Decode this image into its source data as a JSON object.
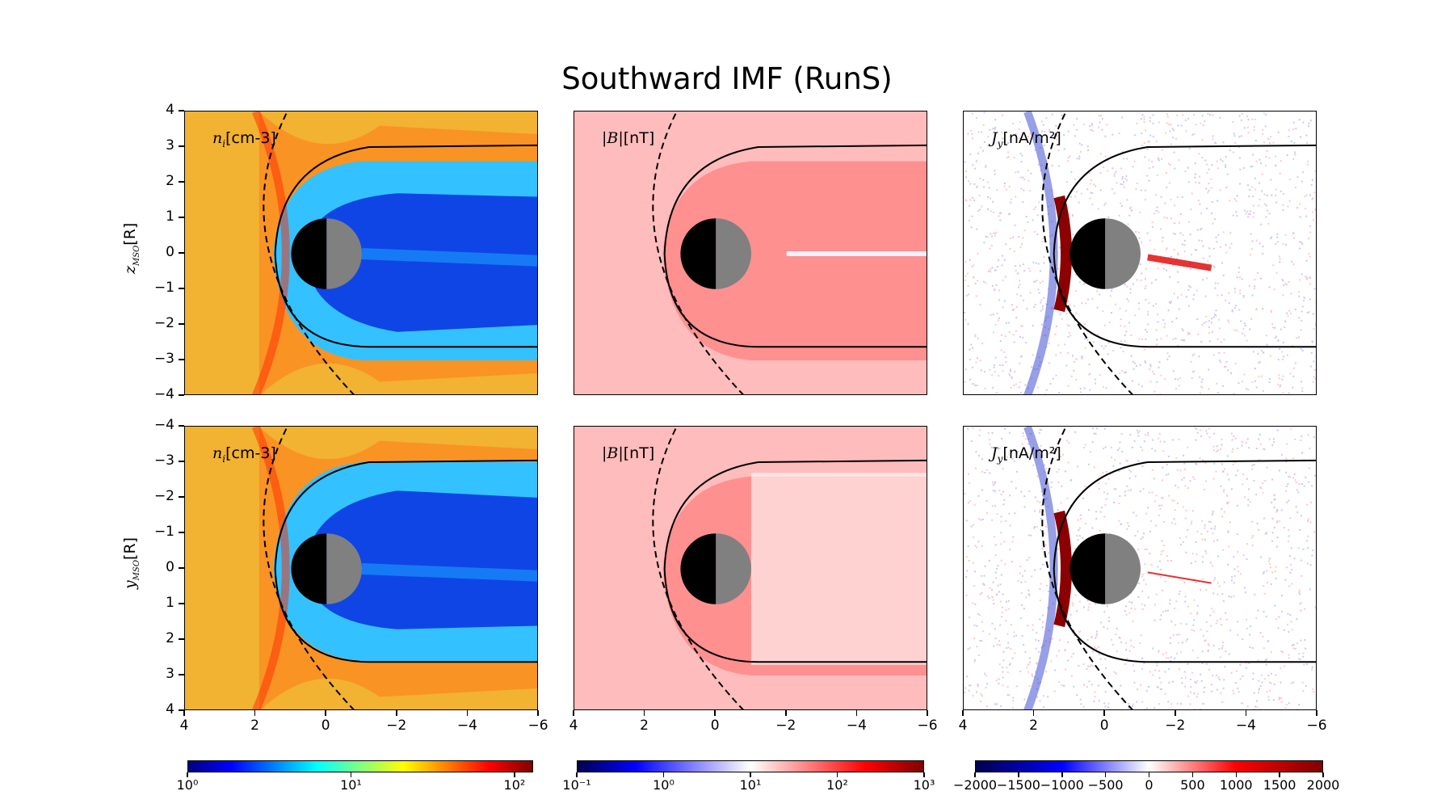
{
  "figure": {
    "title": "Southward IMF (RunS)"
  },
  "chart_data": [
    {
      "type": "heatmap",
      "panel": "top-left",
      "label_var": "n",
      "label_sub": "i",
      "label_unit": "[cm-3]",
      "ylabel_var": "z",
      "ylabel_sub": "MSO",
      "ylabel_unit": "[R]",
      "xlim": [
        4,
        -6
      ],
      "ylim": [
        -4,
        4
      ],
      "yticks": [
        "4",
        "3",
        "2",
        "1",
        "0",
        "−1",
        "−2",
        "−3",
        "−4"
      ],
      "colormap": "jet",
      "scale": "log"
    },
    {
      "type": "heatmap",
      "panel": "top-middle",
      "label_var": "|B|",
      "label_unit": "[nT]",
      "xlim": [
        4,
        -6
      ],
      "ylim": [
        -4,
        4
      ],
      "colormap": "seismic",
      "scale": "log"
    },
    {
      "type": "heatmap",
      "panel": "top-right",
      "label_var": "J",
      "label_sub": "y",
      "label_unit": "[nA/m²]",
      "xlim": [
        4,
        -6
      ],
      "ylim": [
        -4,
        4
      ],
      "colormap": "seismic",
      "scale": "linear"
    },
    {
      "type": "heatmap",
      "panel": "bottom-left",
      "label_var": "n",
      "label_sub": "i",
      "label_unit": "[cm-3]",
      "ylabel_var": "y",
      "ylabel_sub": "MSO",
      "ylabel_unit": "[R]",
      "xlim": [
        4,
        -6
      ],
      "ylim": [
        -4,
        4
      ],
      "yticks": [
        "−4",
        "−3",
        "−2",
        "−1",
        "0",
        "1",
        "2",
        "3",
        "4"
      ],
      "xticks": [
        "4",
        "2",
        "0",
        "−2",
        "−4",
        "−6"
      ],
      "colormap": "jet",
      "scale": "log"
    },
    {
      "type": "heatmap",
      "panel": "bottom-middle",
      "label_var": "|B|",
      "label_unit": "[nT]",
      "xlim": [
        4,
        -6
      ],
      "ylim": [
        -4,
        4
      ],
      "xticks": [
        "4",
        "2",
        "0",
        "−2",
        "−4",
        "−6"
      ],
      "colormap": "seismic",
      "scale": "log"
    },
    {
      "type": "heatmap",
      "panel": "bottom-right",
      "label_var": "J",
      "label_sub": "y",
      "label_unit": "[nA/m²]",
      "xlim": [
        4,
        -6
      ],
      "ylim": [
        -4,
        4
      ],
      "xticks": [
        "4",
        "2",
        "0",
        "−2",
        "−4",
        "−6"
      ],
      "colormap": "seismic",
      "scale": "linear"
    }
  ],
  "colorbars": [
    {
      "ticks": [
        "10⁰",
        "10¹",
        "10²"
      ],
      "range": [
        1,
        130
      ],
      "scale": "log"
    },
    {
      "ticks": [
        "10⁻¹",
        "10⁰",
        "10¹",
        "10²",
        "10³"
      ],
      "range": [
        0.1,
        1000
      ],
      "scale": "log"
    },
    {
      "ticks": [
        "−2000",
        "−1500",
        "−1000",
        "−500",
        "0",
        "500",
        "1000",
        "1500",
        "2000"
      ],
      "range": [
        -2000,
        2000
      ],
      "scale": "linear"
    }
  ],
  "colors": {
    "jet_low": "#00007f",
    "jet_high": "#7f0000",
    "seismic_low": "#00004c",
    "seismic_mid": "#ffffff",
    "seismic_high": "#7f0000",
    "planet_day": "#808080",
    "planet_night": "#000000"
  }
}
